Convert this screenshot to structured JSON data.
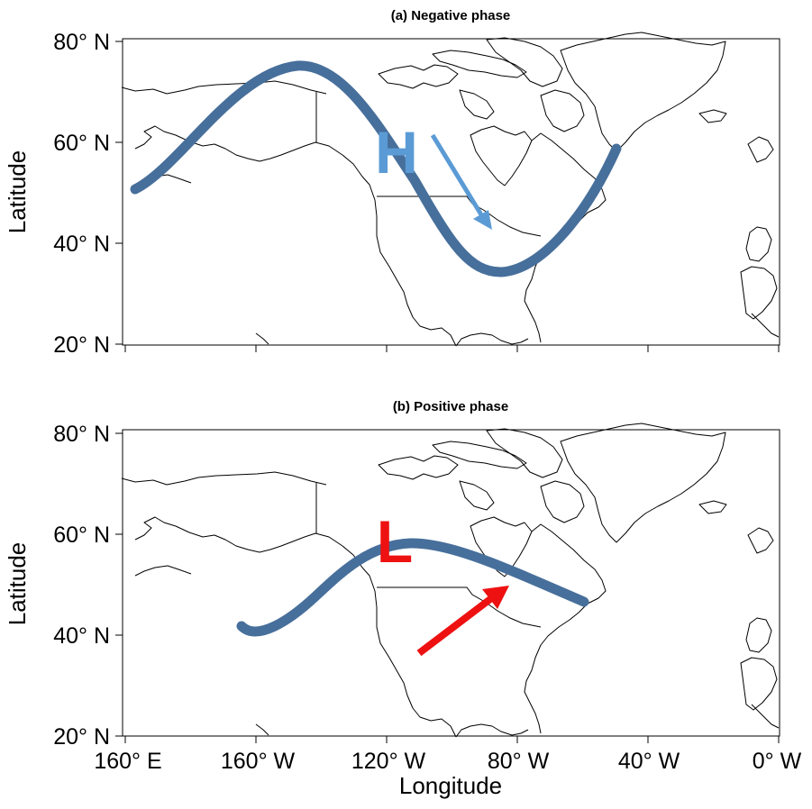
{
  "panels": [
    {
      "title": "(a) Negative phase",
      "pressure_letter": "H",
      "pressure_color": "#5b9bd5",
      "arrow_color": "#5b9bd5",
      "jet_color": "#476f9b"
    },
    {
      "title": "(b) Positive phase",
      "pressure_letter": "L",
      "pressure_color": "#ee1111",
      "arrow_color": "#ee1111",
      "jet_color": "#476f9b"
    }
  ],
  "axes": {
    "ylabel": "Latitude",
    "xlabel": "Longitude",
    "yticks": [
      "80° N",
      "60° N",
      "40° N",
      "20° N"
    ],
    "xticks": [
      "160° E",
      "160° W",
      "120° W",
      "80° W",
      "40° W",
      "0° W"
    ]
  }
}
